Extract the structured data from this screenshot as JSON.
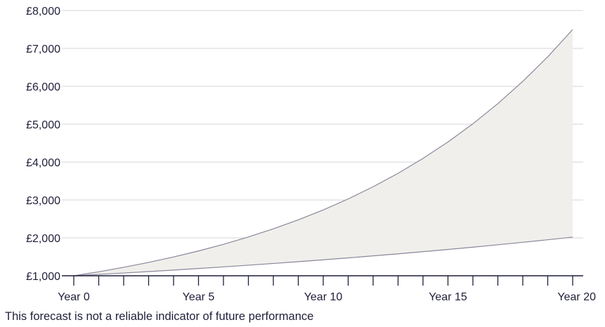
{
  "chart_data": {
    "type": "area",
    "title": "",
    "xlabel": "",
    "ylabel": "",
    "x": [
      0,
      1,
      2,
      3,
      4,
      5,
      6,
      7,
      8,
      9,
      10,
      11,
      12,
      13,
      14,
      15,
      16,
      17,
      18,
      19,
      20
    ],
    "x_tick_values": [
      0,
      5,
      10,
      15,
      20
    ],
    "x_tick_labels": [
      "Year 0",
      "Year 5",
      "Year 10",
      "Year 15",
      "Year 20"
    ],
    "y_tick_values": [
      1000,
      2000,
      3000,
      4000,
      5000,
      6000,
      7000,
      8000
    ],
    "y_tick_labels": [
      "£1,000",
      "£2,000",
      "£3,000",
      "£4,000",
      "£5,000",
      "£6,000",
      "£7,000",
      "£8,000"
    ],
    "xlim": [
      0,
      20
    ],
    "ylim": [
      1000,
      8000
    ],
    "grid": "horizontal",
    "series": [
      {
        "role": "lower",
        "values": [
          1000,
          1036,
          1073,
          1111,
          1151,
          1192,
          1235,
          1279,
          1325,
          1372,
          1421,
          1472,
          1525,
          1579,
          1636,
          1694,
          1755,
          1818,
          1883,
          1950,
          2020
        ]
      },
      {
        "role": "upper",
        "values": [
          1000,
          1106,
          1223,
          1353,
          1496,
          1655,
          1830,
          2024,
          2239,
          2476,
          2738,
          3028,
          3349,
          3704,
          4097,
          4531,
          5011,
          5542,
          6130,
          6779,
          7498
        ]
      }
    ],
    "colors": {
      "band_fill": "#f1efeb",
      "line": "#8a879b",
      "grid": "#d5d5d8",
      "axis": "#1f1f3a",
      "text": "#1f1f3a"
    }
  },
  "caption": "This forecast is not a reliable indicator of future performance"
}
